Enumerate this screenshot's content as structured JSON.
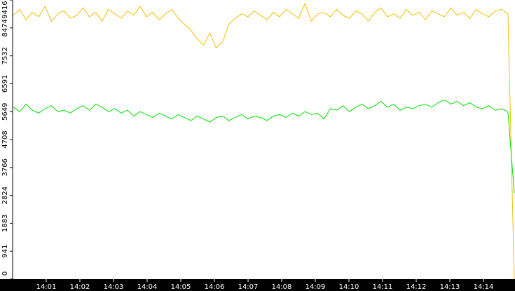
{
  "chart_data": {
    "type": "line",
    "xticks": [
      "14:01",
      "14:02",
      "14:03",
      "14:04",
      "14:05",
      "14:06",
      "14:07",
      "14:08",
      "14:09",
      "14:10",
      "14:11",
      "14:12",
      "14:13",
      "14:14"
    ],
    "ylim": [
      0,
      9416
    ],
    "yticks": [
      0,
      941,
      1883,
      2824,
      3766,
      4708,
      5649,
      6591,
      7532,
      8474,
      9416
    ],
    "series": [
      {
        "color": "#f0c000",
        "values": [
          8900,
          9100,
          8750,
          9000,
          8850,
          9200,
          8700,
          8950,
          9050,
          8800,
          8900,
          9150,
          8850,
          9000,
          8700,
          9100,
          8950,
          8800,
          9050,
          8900,
          9200,
          8850,
          9000,
          8750,
          8950,
          9100,
          8800,
          8600,
          8400,
          8100,
          7900,
          8300,
          7800,
          8000,
          8600,
          8800,
          8950,
          8850,
          9050,
          8900,
          8750,
          9000,
          8850,
          9100,
          8950,
          8800,
          9300,
          8700,
          8950,
          9000,
          8850,
          9100,
          8900,
          8800,
          9050,
          8950,
          8700,
          9000,
          9150,
          8850,
          8950,
          8800,
          9100,
          8900,
          9000,
          8750,
          9050,
          8950,
          8850,
          9150,
          8900,
          9000,
          8800,
          9100,
          8950,
          8850,
          9050,
          9100,
          8950,
          0
        ]
      },
      {
        "color": "#00e000",
        "values": [
          5800,
          5650,
          5900,
          5700,
          5600,
          5750,
          5850,
          5650,
          5700,
          5600,
          5750,
          5850,
          5700,
          5900,
          5800,
          5650,
          5750,
          5600,
          5700,
          5500,
          5650,
          5550,
          5450,
          5600,
          5500,
          5400,
          5550,
          5450,
          5350,
          5500,
          5400,
          5300,
          5450,
          5500,
          5350,
          5450,
          5550,
          5400,
          5500,
          5450,
          5350,
          5500,
          5550,
          5450,
          5600,
          5500,
          5650,
          5550,
          5600,
          5400,
          5750,
          5700,
          5850,
          5650,
          5800,
          5900,
          5750,
          5850,
          6000,
          5800,
          5900,
          5700,
          5800,
          5750,
          5850,
          5900,
          5800,
          5950,
          6050,
          5900,
          6000,
          5850,
          5950,
          5800,
          5750,
          5850,
          5700,
          5750,
          5650,
          2900
        ]
      }
    ]
  }
}
